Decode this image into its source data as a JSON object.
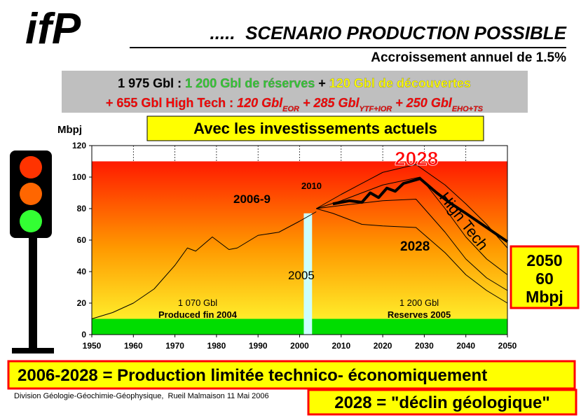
{
  "logo": "ifP",
  "title": ".....  SCENARIO PRODUCTION POSSIBLE",
  "subtitle": "Accroissement annuel de 1.5%",
  "summary": [
    [
      {
        "text": "1 975 Gbl : ",
        "color": "#000000"
      },
      {
        "text": "1 200 Gbl de réserves",
        "color": "#33cc33"
      },
      {
        "text": " + ",
        "color": "#000000"
      },
      {
        "text": "120 Gbl de découvertes",
        "color": "#ffff00"
      }
    ],
    [
      {
        "text": "+ ",
        "color": "#ff0000"
      },
      {
        "text": "655 Gbl High Tech : ",
        "color": "#ff0000"
      },
      {
        "text": "120 Gbl",
        "color": "#ff0000",
        "italic": true
      },
      {
        "text": "EOR",
        "color": "#ff0000",
        "sub": true
      },
      {
        "text": " + 285 Gbl",
        "color": "#ff0000",
        "italic": true
      },
      {
        "text": "YTF+IOR",
        "color": "#ff0000",
        "sub": true
      },
      {
        "text": " + 250 Gbl",
        "color": "#ff0000",
        "italic": true
      },
      {
        "text": "EHO+TS",
        "color": "#ff0000",
        "sub": true
      }
    ]
  ],
  "banner": "Avec les investissements actuels",
  "right_box": [
    "2050",
    "60",
    "Mbpj"
  ],
  "bottom_box": "2006-2028 = Production limitée technico- économiquement",
  "footer": "Division Géologie-Géochimie-Géophysique,  Rueil Malmaison 11 Mai 2006",
  "decline_box": "2028 = \"déclin géologique\"",
  "chart_data": {
    "type": "line",
    "y_label": "Mbpj",
    "xlim": [
      1950,
      2050
    ],
    "xticks": [
      1950,
      1960,
      1970,
      1980,
      1990,
      2000,
      2010,
      2020,
      2030,
      2040,
      2050
    ],
    "ylim": [
      0,
      120
    ],
    "yticks": [
      0,
      20,
      40,
      60,
      80,
      100,
      120
    ],
    "grid": "x",
    "shaded_ymax": 110,
    "green_band_ymax": 10,
    "marker_2005": {
      "x": [
        2001,
        2003
      ],
      "value": 77,
      "color": "#ccffff"
    },
    "series": [
      {
        "name": "Production",
        "color": "#000000",
        "width": 1,
        "x": [
          1950,
          1955,
          1960,
          1965,
          1970,
          1973,
          1975,
          1979,
          1983,
          1985,
          1990,
          1995,
          2000,
          2004
        ],
        "values": [
          10,
          14,
          20,
          29,
          44,
          55,
          53,
          62,
          54,
          55,
          63,
          65,
          72,
          78
        ]
      },
      {
        "name": "S1",
        "color": "#000000",
        "width": 1,
        "x": [
          2004,
          2010,
          2020,
          2028,
          2035,
          2040,
          2045,
          2050
        ],
        "values": [
          80,
          89,
          103,
          108,
          95,
          83,
          70,
          55
        ]
      },
      {
        "name": "S2",
        "color": "#000000",
        "width": 1,
        "x": [
          2004,
          2010,
          2020,
          2029,
          2035,
          2040,
          2045,
          2050
        ],
        "values": [
          80,
          85,
          95,
          100,
          80,
          62,
          48,
          38
        ]
      },
      {
        "name": "S3",
        "color": "#000000",
        "width": 1,
        "x": [
          2004,
          2010,
          2020,
          2028,
          2035,
          2040,
          2045,
          2050
        ],
        "values": [
          80,
          82,
          85,
          86,
          65,
          48,
          36,
          28
        ]
      },
      {
        "name": "S4",
        "color": "#000000",
        "width": 1,
        "x": [
          2004,
          2008,
          2015,
          2020,
          2028,
          2035,
          2040,
          2045,
          2050
        ],
        "values": [
          80,
          77,
          70,
          69,
          68,
          52,
          38,
          28,
          20
        ]
      },
      {
        "name": "High Tech",
        "color": "#000000",
        "width": 4,
        "x": [
          2008,
          2012,
          2015,
          2017,
          2019,
          2021,
          2023,
          2025,
          2029,
          2033,
          2036,
          2040,
          2045,
          2050
        ],
        "values": [
          83,
          85,
          84,
          90,
          87,
          93,
          91,
          96,
          99,
          90,
          84,
          77,
          68,
          59
        ]
      }
    ],
    "annotations": [
      "2006-9",
      "2010",
      "2028",
      "High Tech",
      "2028",
      "2005",
      "1 070 Gbl",
      "Produced fin 2004",
      "1 200 Gbl",
      "Reserves 2005"
    ]
  }
}
